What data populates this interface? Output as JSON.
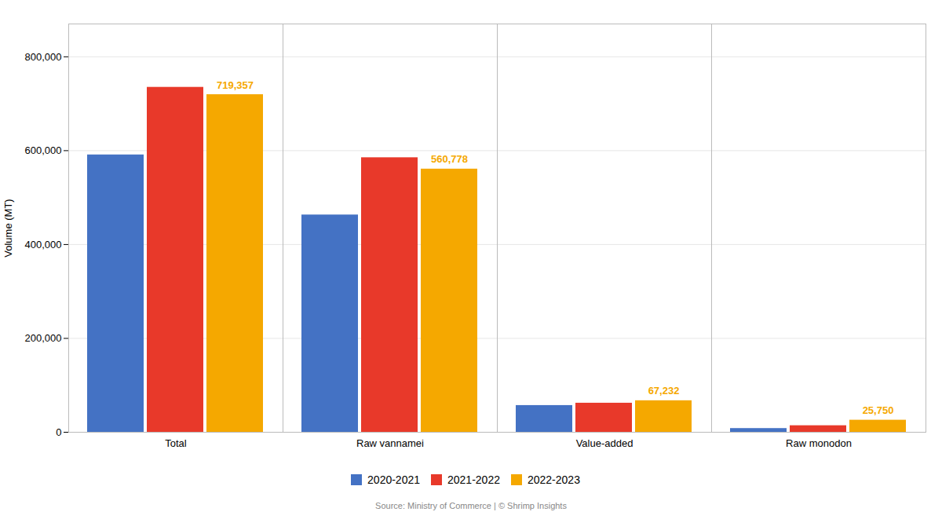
{
  "chart_data": {
    "type": "bar",
    "categories": [
      "Total",
      "Raw vannamei",
      "Value-added",
      "Raw monodon"
    ],
    "series": [
      {
        "name": "2020-2021",
        "color": "#4472C4",
        "values": [
          591000,
          463000,
          57000,
          8000
        ]
      },
      {
        "name": "2021-2022",
        "color": "#E8392A",
        "values": [
          735000,
          585000,
          62000,
          14000
        ]
      },
      {
        "name": "2022-2023",
        "color": "#F5A800",
        "values": [
          719357,
          560778,
          67232,
          25750
        ]
      }
    ],
    "annotations": [
      {
        "category": "Total",
        "series": "2022-2023",
        "value": 719357,
        "text": "719,357"
      },
      {
        "category": "Raw vannamei",
        "series": "2022-2023",
        "value": 560778,
        "text": "560,778"
      },
      {
        "category": "Value-added",
        "series": "2022-2023",
        "value": 67232,
        "text": "67,232"
      },
      {
        "category": "Raw monodon",
        "series": "2022-2023",
        "value": 25750,
        "text": "25,750"
      }
    ],
    "ylabel": "Volume (MT)",
    "ylim": [
      0,
      870000
    ],
    "yticks": [
      0,
      {
        "value": 200000,
        "label": "200,000"
      },
      {
        "value": 400000,
        "label": "400,000"
      },
      {
        "value": 600000,
        "label": "600,000"
      },
      {
        "value": 800000,
        "label": "800,000"
      }
    ],
    "grid": true,
    "legend": "bottom",
    "caption": "Source: Ministry of Commerce | © Shrimp Insights"
  }
}
